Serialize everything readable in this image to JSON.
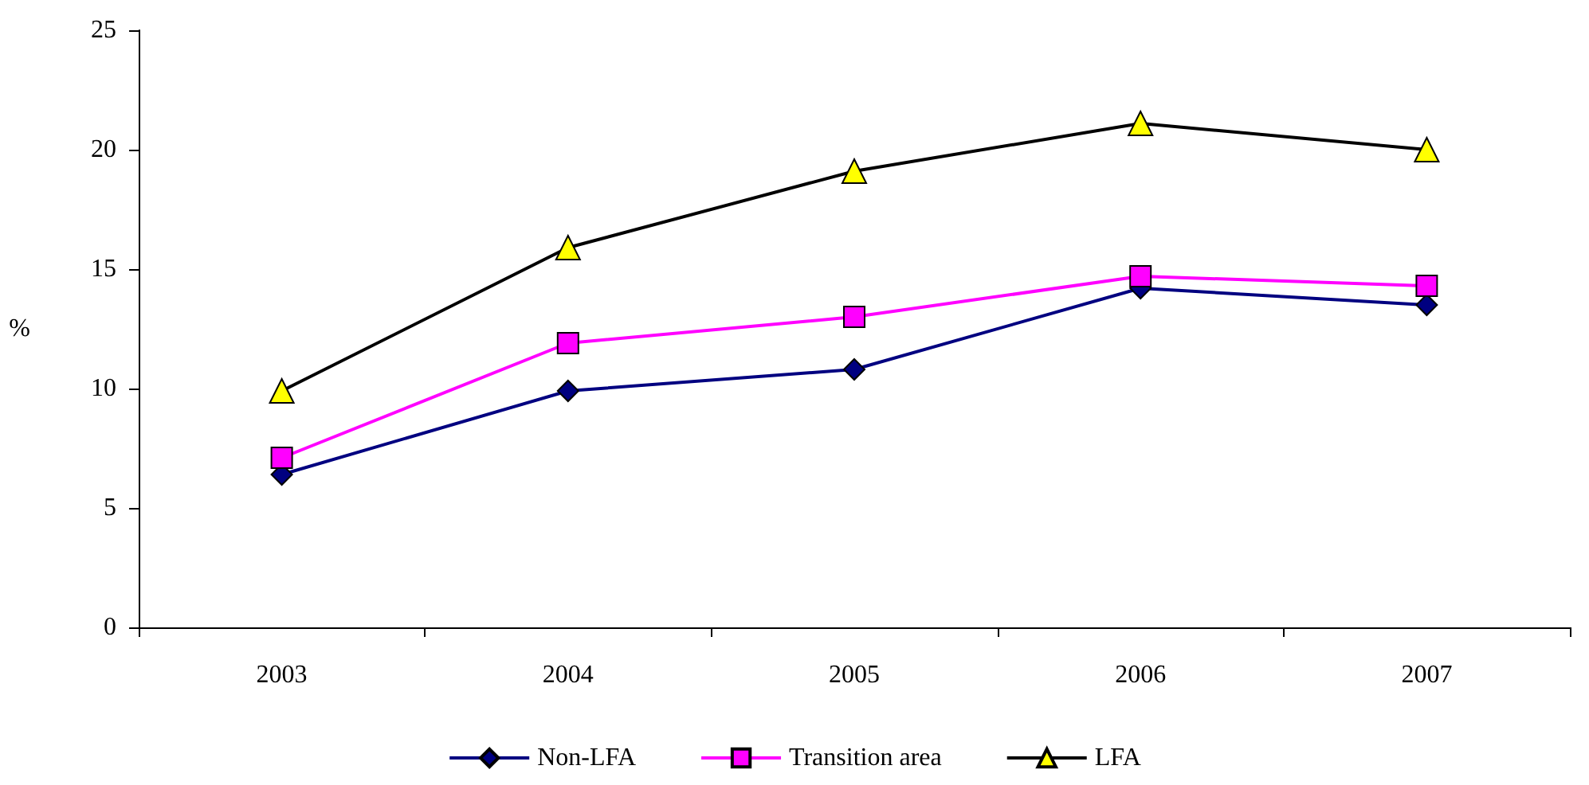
{
  "chart_data": {
    "type": "line",
    "ylabel": "%",
    "categories": [
      "2003",
      "2004",
      "2005",
      "2006",
      "2007"
    ],
    "series": [
      {
        "name": "Non-LFA",
        "color": "#000080",
        "marker": "diamond",
        "values": [
          6.4,
          9.9,
          10.8,
          14.2,
          13.5
        ]
      },
      {
        "name": "Transition area",
        "color": "#ff00ff",
        "marker": "square",
        "values": [
          7.1,
          11.9,
          13.0,
          14.7,
          14.3
        ]
      },
      {
        "name": "LFA",
        "color": "#000000",
        "colors": [
          "#ffff00",
          "#ffff00",
          "#ffff00",
          "#ffff00",
          "#ffff00"
        ],
        "marker": "triangle",
        "values": [
          9.9,
          15.9,
          19.1,
          21.1,
          20.0
        ]
      }
    ],
    "ylim": [
      0,
      25
    ],
    "yticks": [
      0,
      5,
      10,
      15,
      20,
      25
    ],
    "grid": false,
    "legend": "bottom"
  }
}
